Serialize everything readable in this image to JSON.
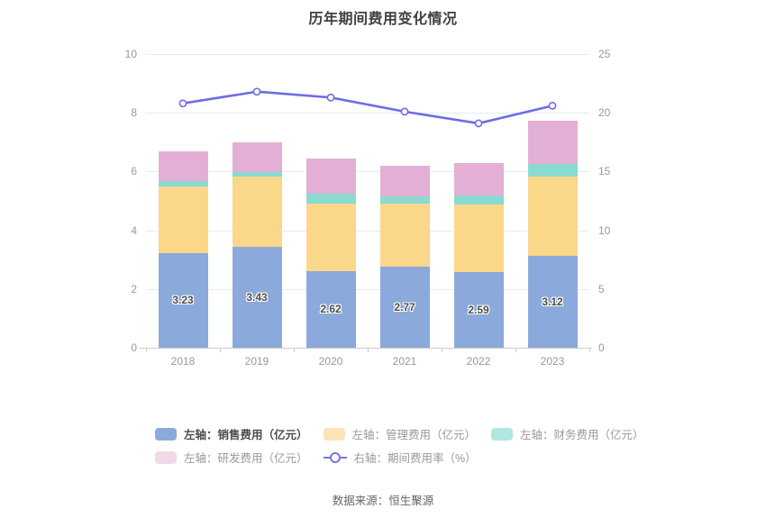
{
  "title": "历年期间费用变化情况",
  "footer": "数据来源：恒生聚源",
  "colors": {
    "grid": "#E7EAF2",
    "axis_line": "#CCCCCC",
    "tick_label": "#999999",
    "title_text": "#404040",
    "value_label": "#4D4D4D",
    "line": "#6E6BE6"
  },
  "chart_data": {
    "type": "bar",
    "stacked": true,
    "title": "历年期间费用变化情况",
    "categories": [
      "2018",
      "2019",
      "2020",
      "2021",
      "2022",
      "2023"
    ],
    "series": [
      {
        "name": "左轴：销售费用（亿元）",
        "type": "bar",
        "axis": "left",
        "color": "#8CA9DB",
        "values": [
          3.23,
          3.43,
          2.62,
          2.77,
          2.59,
          3.12
        ],
        "data_labels": [
          "3.23",
          "3.43",
          "2.62",
          "2.77",
          "2.59",
          "3.12"
        ]
      },
      {
        "name": "左轴：管理费用（亿元）",
        "type": "bar",
        "axis": "left",
        "color": "#FBD78A",
        "values": [
          2.27,
          2.4,
          2.28,
          2.13,
          2.3,
          2.72
        ]
      },
      {
        "name": "左轴：财务费用（亿元）",
        "type": "bar",
        "axis": "left",
        "color": "#89DAD0",
        "values": [
          0.18,
          0.15,
          0.36,
          0.25,
          0.3,
          0.42
        ]
      },
      {
        "name": "左轴：研发费用（亿元）",
        "type": "bar",
        "axis": "left",
        "color": "#E3AFD5",
        "values": [
          1.02,
          1.0,
          1.18,
          1.05,
          1.1,
          1.48
        ]
      },
      {
        "name": "右轴：期间费用率（%）",
        "type": "line",
        "axis": "right",
        "color": "#6E6BE6",
        "values": [
          20.8,
          21.8,
          21.3,
          20.1,
          19.1,
          20.6
        ]
      }
    ],
    "left_axis": {
      "min": 0,
      "max": 10,
      "tick_labels": [
        "0",
        "2",
        "4",
        "6",
        "8",
        "10"
      ]
    },
    "right_axis": {
      "min": 0,
      "max": 25,
      "tick_labels": [
        "0",
        "5",
        "10",
        "15",
        "20",
        "25"
      ]
    },
    "legend_position": "bottom",
    "grid": true
  },
  "legend": {
    "rows": [
      [
        {
          "label": "左轴：销售费用（亿元）",
          "symbol": "rect",
          "swatch": "#8CA9DB",
          "emphasized": true
        },
        {
          "label": "左轴：管理费用（亿元）",
          "symbol": "rect",
          "swatch": "#FCE3B8",
          "emphasized": false
        },
        {
          "label": "左轴：财务费用（亿元）",
          "symbol": "rect",
          "swatch": "#B2E6E0",
          "emphasized": false
        }
      ],
      [
        {
          "label": "左轴：研发费用（亿元）",
          "symbol": "rect",
          "swatch": "#F1D9E9",
          "emphasized": false
        },
        {
          "label": "右轴：期间费用率（%）",
          "symbol": "line",
          "swatch": "#7478E8",
          "emphasized": false
        }
      ]
    ]
  }
}
